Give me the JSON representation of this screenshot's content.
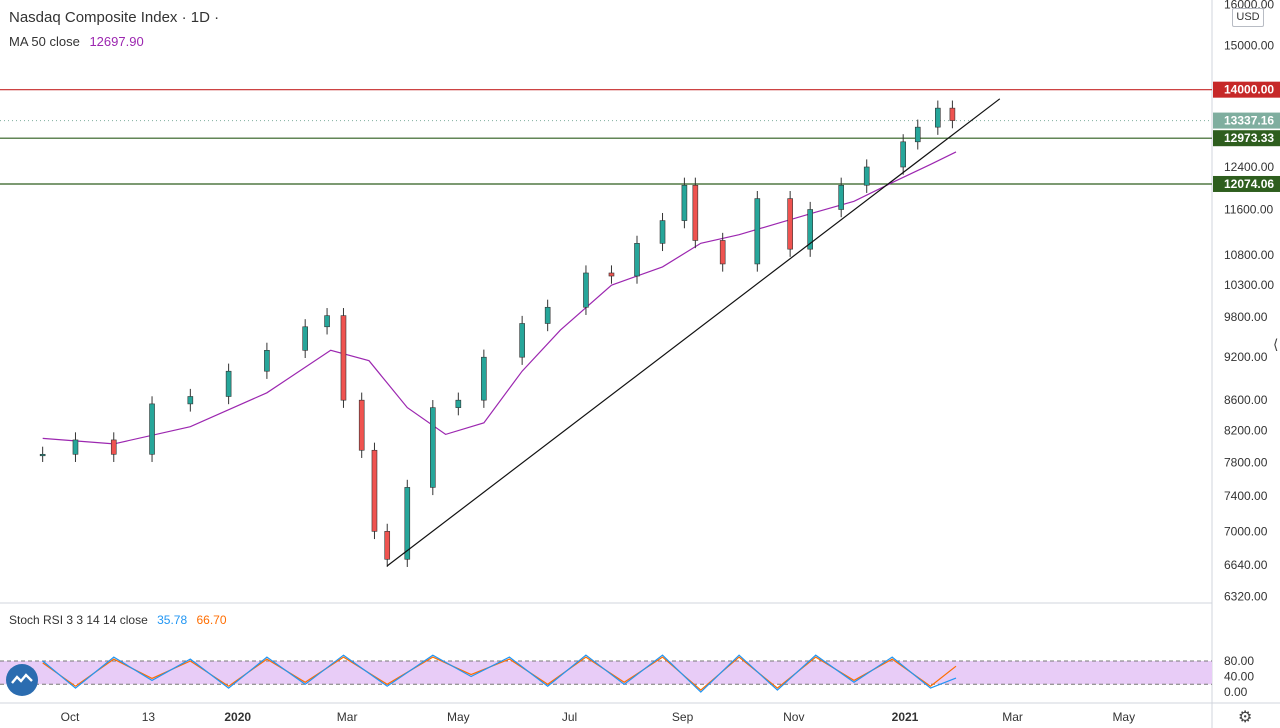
{
  "header": {
    "title": "Nasdaq Composite Index · 1D ·",
    "ma_label": "MA 50 close",
    "ma_value": "12697.90",
    "currency": "USD"
  },
  "indicator": {
    "label": "Stoch RSI 3 3 14 14 close",
    "k_value": "35.78",
    "d_value": "66.70",
    "ticks": [
      "80.00",
      "40.00",
      "0.00"
    ]
  },
  "colors": {
    "up": "#26a69a",
    "down": "#ef5350",
    "ma": "#9c27b0",
    "k_line": "#2196f3",
    "d_line": "#ff6d00",
    "stoch_band": "#e8ccf7",
    "resistance": "#c62828",
    "support": "#2e5e1e",
    "last_price": "#7fae9f"
  },
  "chart_data": {
    "type": "candlestick",
    "title": "Nasdaq Composite Index · 1D ·",
    "y_axis": {
      "ticks": [
        "16000.00",
        "15000.00",
        "12400.00",
        "11600.00",
        "10800.00",
        "10300.00",
        "9800.00",
        "9200.00",
        "8600.00",
        "8200.00",
        "7800.00",
        "7400.00",
        "7000.00",
        "6640.00",
        "6320.00"
      ],
      "tick_values": [
        16000,
        15000,
        12400,
        11600,
        10800,
        10300,
        9800,
        9200,
        8600,
        8200,
        7800,
        7400,
        7000,
        6640,
        6320
      ],
      "scale": "log"
    },
    "x_axis": {
      "labels": [
        "Oct",
        "13",
        "2020",
        "Mar",
        "May",
        "Jul",
        "Sep",
        "Nov",
        "2021",
        "Mar",
        "May"
      ],
      "label_dates": [
        "2019-10-01",
        "2019-11-13",
        "2020-01-01",
        "2020-03-01",
        "2020-05-01",
        "2020-07-01",
        "2020-09-01",
        "2020-11-01",
        "2021-01-01",
        "2021-03-01",
        "2021-05-01"
      ],
      "bold": [
        "2020",
        "2021"
      ]
    },
    "price_levels": [
      {
        "label": "14000.00",
        "value": 14000,
        "style": "resistance"
      },
      {
        "label": "13337.16",
        "value": 13337.16,
        "style": "last-price"
      },
      {
        "label": "12973.33",
        "value": 12973.33,
        "style": "support"
      },
      {
        "label": "12074.06",
        "value": 12074.06,
        "style": "support"
      }
    ],
    "trendline": {
      "from": [
        "2020-03-23",
        6631
      ],
      "to": [
        "2021-02-22",
        13800
      ]
    },
    "series": [
      {
        "name": "Nasdaq Composite Index",
        "kind": "candles",
        "x": [
          "2019-09-16",
          "2019-10-04",
          "2019-10-25",
          "2019-11-15",
          "2019-12-06",
          "2019-12-27",
          "2020-01-17",
          "2020-02-07",
          "2020-02-19",
          "2020-02-28",
          "2020-03-09",
          "2020-03-16",
          "2020-03-23",
          "2020-04-03",
          "2020-04-17",
          "2020-05-01",
          "2020-05-15",
          "2020-06-05",
          "2020-06-19",
          "2020-07-10",
          "2020-07-24",
          "2020-08-07",
          "2020-08-21",
          "2020-09-02",
          "2020-09-08",
          "2020-09-23",
          "2020-10-12",
          "2020-10-30",
          "2020-11-10",
          "2020-11-27",
          "2020-12-11",
          "2020-12-31",
          "2021-01-08",
          "2021-01-19",
          "2021-01-27"
        ],
        "values": [
          7900,
          8080,
          7900,
          8550,
          8650,
          9000,
          9300,
          9650,
          9820,
          8600,
          7950,
          7000,
          6700,
          7500,
          8500,
          8600,
          9200,
          9700,
          9950,
          10500,
          10450,
          11000,
          11400,
          12050,
          11050,
          10650,
          11800,
          10900,
          11600,
          12050,
          12400,
          12900,
          13200,
          13600,
          13337
        ]
      },
      {
        "name": "MA 50 close",
        "kind": "line",
        "x": [
          "2019-09-16",
          "2019-10-25",
          "2019-12-06",
          "2020-01-17",
          "2020-02-21",
          "2020-03-13",
          "2020-04-03",
          "2020-04-24",
          "2020-05-15",
          "2020-06-05",
          "2020-06-26",
          "2020-07-24",
          "2020-08-21",
          "2020-09-11",
          "2020-10-02",
          "2020-10-23",
          "2020-11-13",
          "2020-12-04",
          "2020-12-25",
          "2021-01-15",
          "2021-01-29"
        ],
        "values": [
          8100,
          8030,
          8250,
          8700,
          9300,
          9150,
          8500,
          8150,
          8300,
          9000,
          9600,
          10300,
          10600,
          11000,
          11150,
          11350,
          11550,
          11750,
          12100,
          12450,
          12697.9
        ]
      }
    ],
    "stoch_rsi": {
      "upper_band": 80,
      "lower_band": 20,
      "x": [
        "2019-09-16",
        "2019-10-04",
        "2019-10-25",
        "2019-11-15",
        "2019-12-06",
        "2019-12-27",
        "2020-01-17",
        "2020-02-07",
        "2020-02-28",
        "2020-03-23",
        "2020-04-17",
        "2020-05-08",
        "2020-05-29",
        "2020-06-19",
        "2020-07-10",
        "2020-07-31",
        "2020-08-21",
        "2020-09-11",
        "2020-10-02",
        "2020-10-23",
        "2020-11-13",
        "2020-12-04",
        "2020-12-25",
        "2021-01-15",
        "2021-01-29"
      ],
      "k": [
        80,
        10,
        90,
        30,
        85,
        10,
        90,
        20,
        95,
        15,
        95,
        40,
        90,
        15,
        95,
        20,
        95,
        0,
        95,
        5,
        95,
        25,
        90,
        10,
        35.78
      ],
      "d": [
        75,
        15,
        85,
        35,
        80,
        15,
        85,
        25,
        90,
        20,
        90,
        45,
        85,
        20,
        90,
        25,
        90,
        5,
        90,
        10,
        90,
        30,
        85,
        15,
        66.7
      ]
    }
  }
}
